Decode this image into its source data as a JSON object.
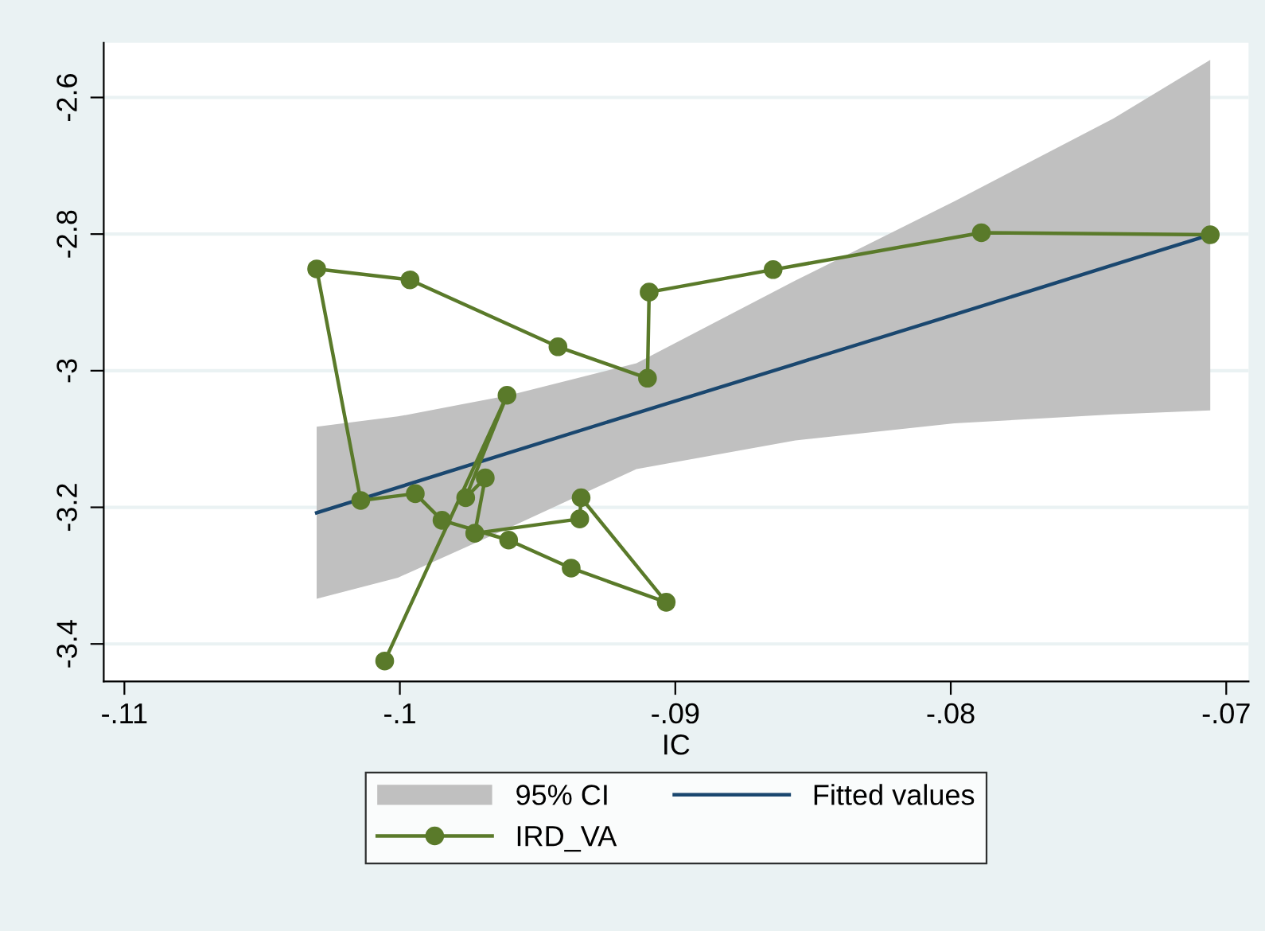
{
  "chart_data": {
    "type": "line",
    "xlabel": "IC",
    "xlim": [
      -0.11075,
      -0.06919
    ],
    "ylim": [
      -3.455,
      -2.52
    ],
    "xticks": [
      {
        "value": -0.11,
        "label": "-.11"
      },
      {
        "value": -0.1,
        "label": "-.1"
      },
      {
        "value": -0.09,
        "label": "-.09"
      },
      {
        "value": -0.08,
        "label": "-.08"
      },
      {
        "value": -0.07,
        "label": "-.07"
      }
    ],
    "yticks": [
      {
        "value": -3.4,
        "label": "-3.4"
      },
      {
        "value": -3.2,
        "label": "-3.2"
      },
      {
        "value": -3.0,
        "label": "-3"
      },
      {
        "value": -2.8,
        "label": "-2.8"
      },
      {
        "value": -2.6,
        "label": "-2.6"
      }
    ],
    "grid": "y",
    "legend": "bottom",
    "annotations": [
      "95% CI"
    ],
    "series": [
      {
        "name": "Fitted values",
        "color": "#1a476f",
        "marker": "none",
        "x": [
          -0.10302,
          -0.10007,
          -0.09603,
          -0.09141,
          -0.08564,
          -0.07987,
          -0.0741,
          -0.07058
        ],
        "values": [
          -3.208,
          -3.171,
          -3.12,
          -3.062,
          -2.99,
          -2.918,
          -2.845,
          -2.801
        ],
        "lower": [
          -3.334,
          -3.303,
          -3.23,
          -3.144,
          -3.102,
          -3.077,
          -3.064,
          -3.058
        ],
        "upper": [
          -3.082,
          -3.067,
          -3.036,
          -2.989,
          -2.868,
          -2.752,
          -2.631,
          -2.545
        ]
      },
      {
        "name": "IRD_VA",
        "type": "line",
        "color": "#5a7a2a",
        "marker": "circle",
        "x": [
          -0.10055,
          -0.09611,
          -0.09761,
          -0.0969,
          -0.09728,
          -0.09347,
          -0.09342,
          -0.09033,
          -0.09378,
          -0.09605,
          -0.09847,
          -0.09944,
          -0.10142,
          -0.10302,
          -0.09963,
          -0.09426,
          -0.09101,
          -0.09095,
          -0.08645,
          -0.07889,
          -0.07058
        ],
        "values": [
          -3.425,
          -3.036,
          -3.186,
          -3.157,
          -3.238,
          -3.217,
          -3.186,
          -3.339,
          -3.289,
          -3.248,
          -3.219,
          -3.18,
          -3.19,
          -2.851,
          -2.867,
          -2.965,
          -3.011,
          -2.885,
          -2.852,
          -2.798,
          -2.801
        ]
      }
    ]
  }
}
